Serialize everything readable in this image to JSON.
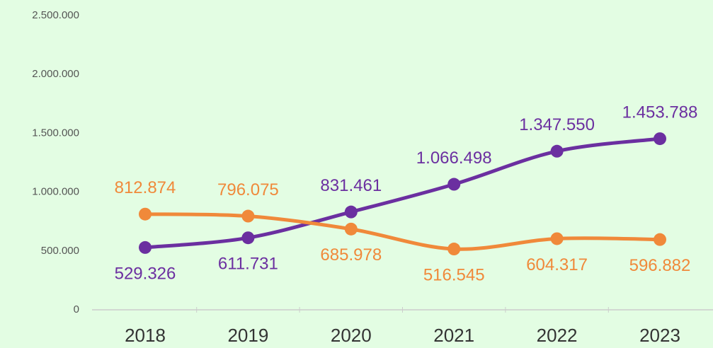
{
  "chart_data": {
    "type": "line",
    "categories": [
      "2018",
      "2019",
      "2020",
      "2021",
      "2022",
      "2023"
    ],
    "series": [
      {
        "color": "#6b2fa0",
        "values": [
          529326,
          611731,
          831461,
          1066498,
          1347550,
          1453788
        ],
        "value_labels": [
          "529.326",
          "611.731",
          "831.461",
          "1.066.498",
          "1.347.550",
          "1.453.788"
        ]
      },
      {
        "color": "#f0893a",
        "values": [
          812874,
          796075,
          685978,
          516545,
          604317,
          596882
        ],
        "value_labels": [
          "812.874",
          "796.075",
          "685.978",
          "516.545",
          "604.317",
          "596.882"
        ]
      }
    ],
    "ylim": [
      0,
      2500000
    ],
    "yticks": [
      0,
      {
        "value": 500000,
        "label": "500.000"
      },
      {
        "value": 1000000,
        "label": "1.000.000"
      },
      {
        "value": 1500000,
        "label": "1.500.000"
      },
      {
        "value": 2000000,
        "label": "2.000.000"
      },
      {
        "value": 2500000,
        "label": "2.500.000"
      }
    ],
    "grid": false
  }
}
